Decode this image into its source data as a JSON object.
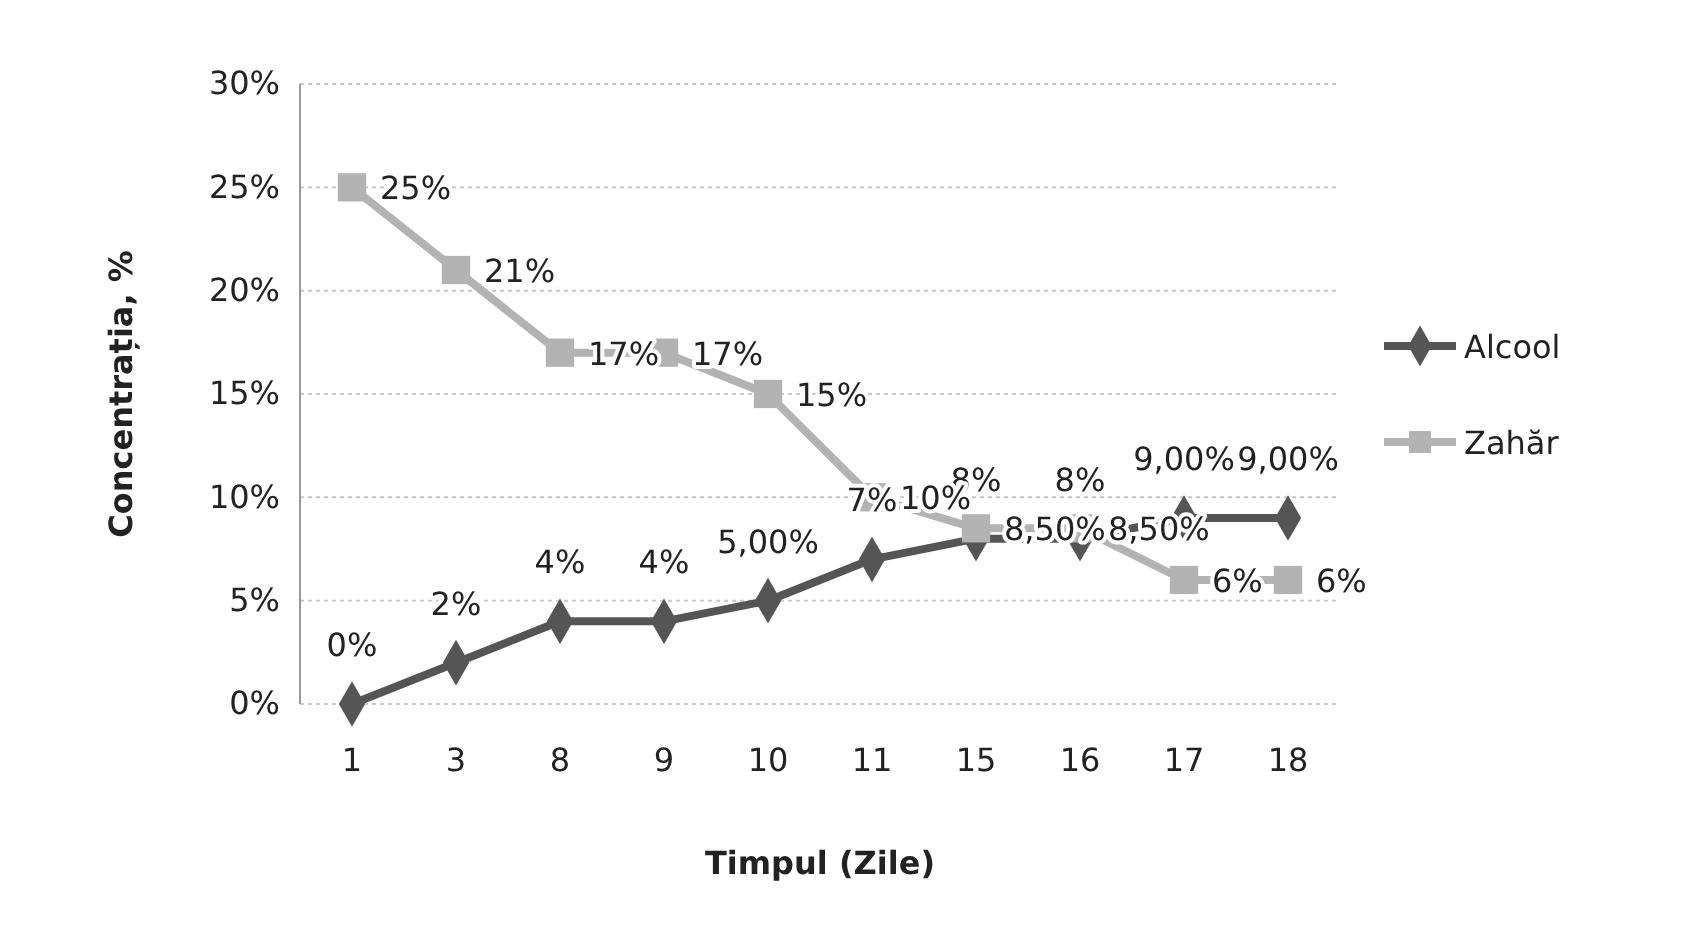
{
  "chart_data": {
    "type": "line",
    "xlabel": "Timpul (Zile)",
    "ylabel": "Concentrația, %",
    "categories": [
      "1",
      "3",
      "8",
      "9",
      "10",
      "11",
      "15",
      "16",
      "17",
      "18"
    ],
    "series": [
      {
        "name": "Alcool",
        "color": "#555555",
        "marker": "diamond",
        "values": [
          0,
          2,
          4,
          4,
          5,
          7,
          8,
          8,
          9,
          9
        ],
        "value_labels": [
          "0%",
          "2%",
          "4%",
          "4%",
          "5,00%",
          "7%",
          "8%",
          "8%",
          "9,00%",
          "9,00%"
        ]
      },
      {
        "name": "Zahăr",
        "color": "#b3b3b3",
        "marker": "square",
        "values": [
          25,
          21,
          17,
          17,
          15,
          10,
          8.5,
          8.5,
          6,
          6
        ],
        "value_labels": [
          "25%",
          "21%",
          "17%",
          "17%",
          "15%",
          "10%",
          "8,50%",
          "8,50%",
          "6%",
          "6%"
        ]
      }
    ],
    "ylim": [
      0,
      30
    ],
    "yticks": [
      {
        "value": 0,
        "label": "0%"
      },
      {
        "value": 5,
        "label": "5%"
      },
      {
        "value": 10,
        "label": "10%"
      },
      {
        "value": 15,
        "label": "15%"
      },
      {
        "value": 20,
        "label": "20%"
      },
      {
        "value": 25,
        "label": "25%"
      },
      {
        "value": 30,
        "label": "30%"
      }
    ],
    "grid": "y",
    "legend": "right"
  }
}
